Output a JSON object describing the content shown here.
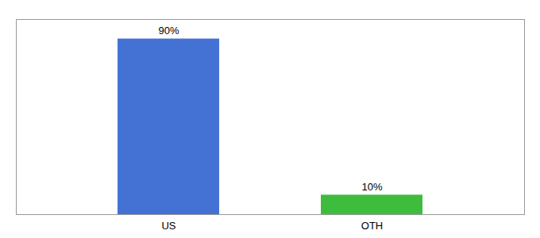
{
  "chart_data": {
    "type": "bar",
    "categories": [
      "US",
      "OTH"
    ],
    "values": [
      90,
      10
    ],
    "colors": [
      "#4472d4",
      "#3ebc3e"
    ],
    "ylim": [
      0,
      100
    ],
    "data_labels": true,
    "value_labels": [
      "90%",
      "10%"
    ],
    "tick_labels": "x"
  }
}
